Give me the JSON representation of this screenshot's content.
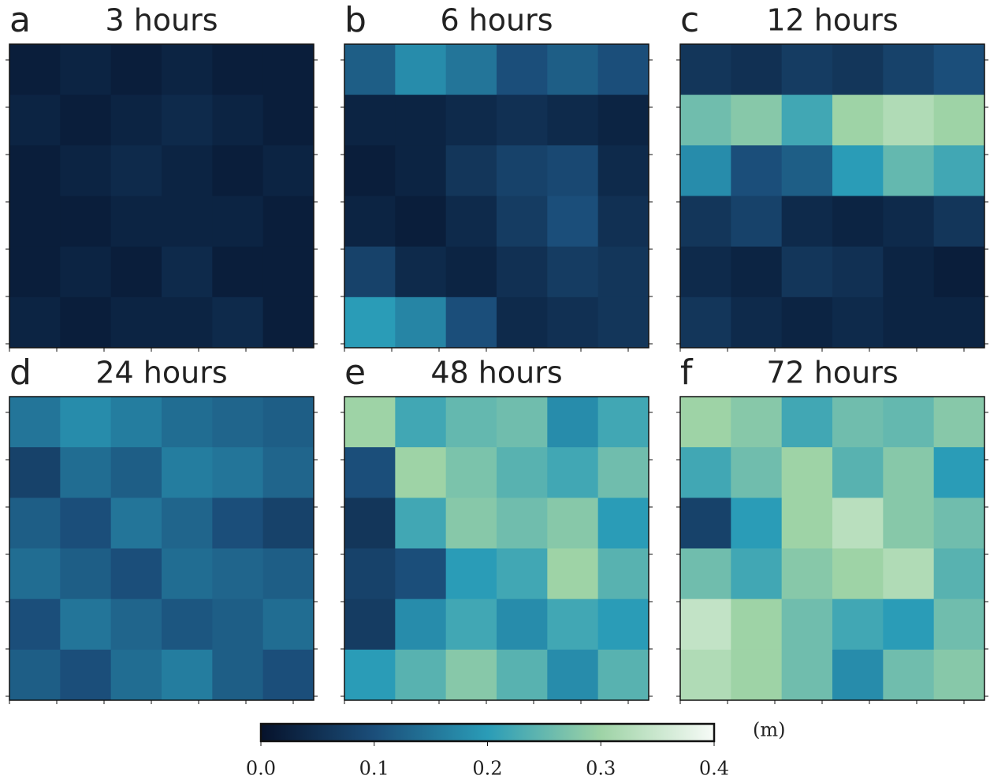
{
  "chart_data": [
    {
      "type": "heatmap",
      "label": "a",
      "title": "3 hours",
      "z": [
        [
          0.02,
          0.03,
          0.02,
          0.03,
          0.02,
          0.02
        ],
        [
          0.03,
          0.02,
          0.03,
          0.04,
          0.03,
          0.02
        ],
        [
          0.02,
          0.03,
          0.04,
          0.03,
          0.02,
          0.03
        ],
        [
          0.02,
          0.02,
          0.03,
          0.03,
          0.03,
          0.02
        ],
        [
          0.02,
          0.03,
          0.02,
          0.04,
          0.02,
          0.02
        ],
        [
          0.03,
          0.02,
          0.03,
          0.03,
          0.04,
          0.02
        ]
      ]
    },
    {
      "type": "heatmap",
      "label": "b",
      "title": "6 hours",
      "z": [
        [
          0.12,
          0.18,
          0.15,
          0.1,
          0.12,
          0.1
        ],
        [
          0.03,
          0.03,
          0.04,
          0.05,
          0.04,
          0.03
        ],
        [
          0.02,
          0.03,
          0.06,
          0.08,
          0.09,
          0.04
        ],
        [
          0.03,
          0.02,
          0.04,
          0.07,
          0.1,
          0.05
        ],
        [
          0.08,
          0.04,
          0.03,
          0.05,
          0.07,
          0.06
        ],
        [
          0.2,
          0.17,
          0.1,
          0.04,
          0.05,
          0.06
        ]
      ]
    },
    {
      "type": "heatmap",
      "label": "c",
      "title": "12 hours",
      "z": [
        [
          0.06,
          0.05,
          0.07,
          0.06,
          0.08,
          0.1
        ],
        [
          0.26,
          0.28,
          0.22,
          0.3,
          0.32,
          0.3
        ],
        [
          0.18,
          0.1,
          0.12,
          0.2,
          0.25,
          0.22
        ],
        [
          0.06,
          0.08,
          0.04,
          0.03,
          0.04,
          0.06
        ],
        [
          0.04,
          0.03,
          0.06,
          0.05,
          0.03,
          0.02
        ],
        [
          0.06,
          0.04,
          0.03,
          0.04,
          0.03,
          0.03
        ]
      ]
    },
    {
      "type": "heatmap",
      "label": "d",
      "title": "24 hours",
      "z": [
        [
          0.15,
          0.18,
          0.16,
          0.14,
          0.13,
          0.12
        ],
        [
          0.08,
          0.14,
          0.12,
          0.16,
          0.15,
          0.13
        ],
        [
          0.12,
          0.1,
          0.15,
          0.13,
          0.1,
          0.08
        ],
        [
          0.14,
          0.12,
          0.1,
          0.14,
          0.13,
          0.12
        ],
        [
          0.1,
          0.15,
          0.13,
          0.11,
          0.12,
          0.14
        ],
        [
          0.12,
          0.1,
          0.14,
          0.16,
          0.12,
          0.1
        ]
      ]
    },
    {
      "type": "heatmap",
      "label": "e",
      "title": "48 hours",
      "z": [
        [
          0.3,
          0.22,
          0.25,
          0.26,
          0.18,
          0.22
        ],
        [
          0.1,
          0.3,
          0.27,
          0.24,
          0.22,
          0.26
        ],
        [
          0.06,
          0.22,
          0.28,
          0.26,
          0.28,
          0.2
        ],
        [
          0.08,
          0.1,
          0.2,
          0.22,
          0.3,
          0.24
        ],
        [
          0.07,
          0.18,
          0.22,
          0.18,
          0.22,
          0.2
        ],
        [
          0.2,
          0.24,
          0.28,
          0.24,
          0.18,
          0.24
        ]
      ]
    },
    {
      "type": "heatmap",
      "label": "f",
      "title": "72 hours",
      "z": [
        [
          0.3,
          0.28,
          0.22,
          0.26,
          0.25,
          0.28
        ],
        [
          0.22,
          0.26,
          0.3,
          0.24,
          0.28,
          0.2
        ],
        [
          0.08,
          0.2,
          0.3,
          0.33,
          0.28,
          0.26
        ],
        [
          0.26,
          0.22,
          0.28,
          0.3,
          0.32,
          0.24
        ],
        [
          0.34,
          0.3,
          0.26,
          0.22,
          0.2,
          0.26
        ],
        [
          0.32,
          0.3,
          0.26,
          0.18,
          0.26,
          0.28
        ]
      ]
    }
  ],
  "colorbar": {
    "lim": [
      0,
      0.4
    ],
    "ticks": [
      {
        "value": 0,
        "label": "0.0"
      },
      0.1,
      0.2,
      0.3,
      0.4
    ],
    "label": "(m)",
    "colormap": [
      "#06122b",
      "#1b4e7a",
      "#2a9cb7",
      "#9ed3a6",
      "#f7fbf7"
    ]
  }
}
